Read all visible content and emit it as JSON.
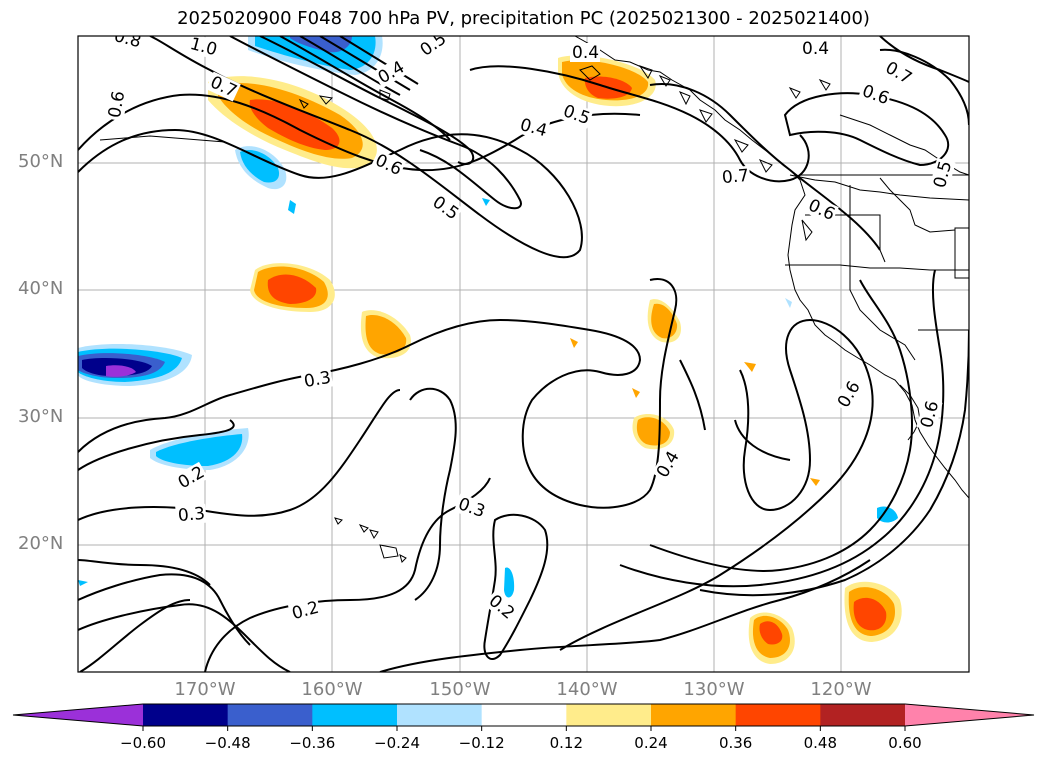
{
  "title": "2025020900 F048 700 hPa PV, precipitation PC (2025021300 - 2025021400)",
  "map": {
    "lat_labels": [
      "50°N",
      "40°N",
      "30°N",
      "20°N"
    ],
    "lon_labels": [
      "170°W",
      "160°W",
      "150°W",
      "140°W",
      "130°W",
      "120°W"
    ],
    "extent": {
      "lon_min": -180,
      "lon_max": -110,
      "lat_min": 10,
      "lat_max": 60
    },
    "gridlines": true,
    "contour_labels": [
      "0.8",
      "1.0",
      "0.5",
      "0.4",
      "0.4",
      "0.4",
      "0.7",
      "0.6",
      "0.7",
      "0.6",
      "0.5",
      "0.6",
      "0.4",
      "0.5",
      "0.7",
      "0.6",
      "0.5",
      "0.6",
      "0.3",
      "0.6",
      "0.4",
      "0.2",
      "0.3",
      "0.3",
      "0.2",
      "0.2",
      "0.2"
    ],
    "colors": {
      "grid": "#b0b0b0",
      "contour": "#000000",
      "coast": "#000000"
    }
  },
  "colorbar": {
    "ticks": [
      "−0.60",
      "−0.48",
      "−0.36",
      "−0.24",
      "−0.12",
      "0.12",
      "0.24",
      "0.36",
      "0.48",
      "0.60"
    ],
    "colors": [
      "#9b30d9",
      "#00008b",
      "#3a5fcd",
      "#00bfff",
      "#b0e2ff",
      "#ffffff",
      "#ffec8b",
      "#ffa500",
      "#ff4500",
      "#b22222",
      "#ff82ab"
    ],
    "extend": "both"
  }
}
